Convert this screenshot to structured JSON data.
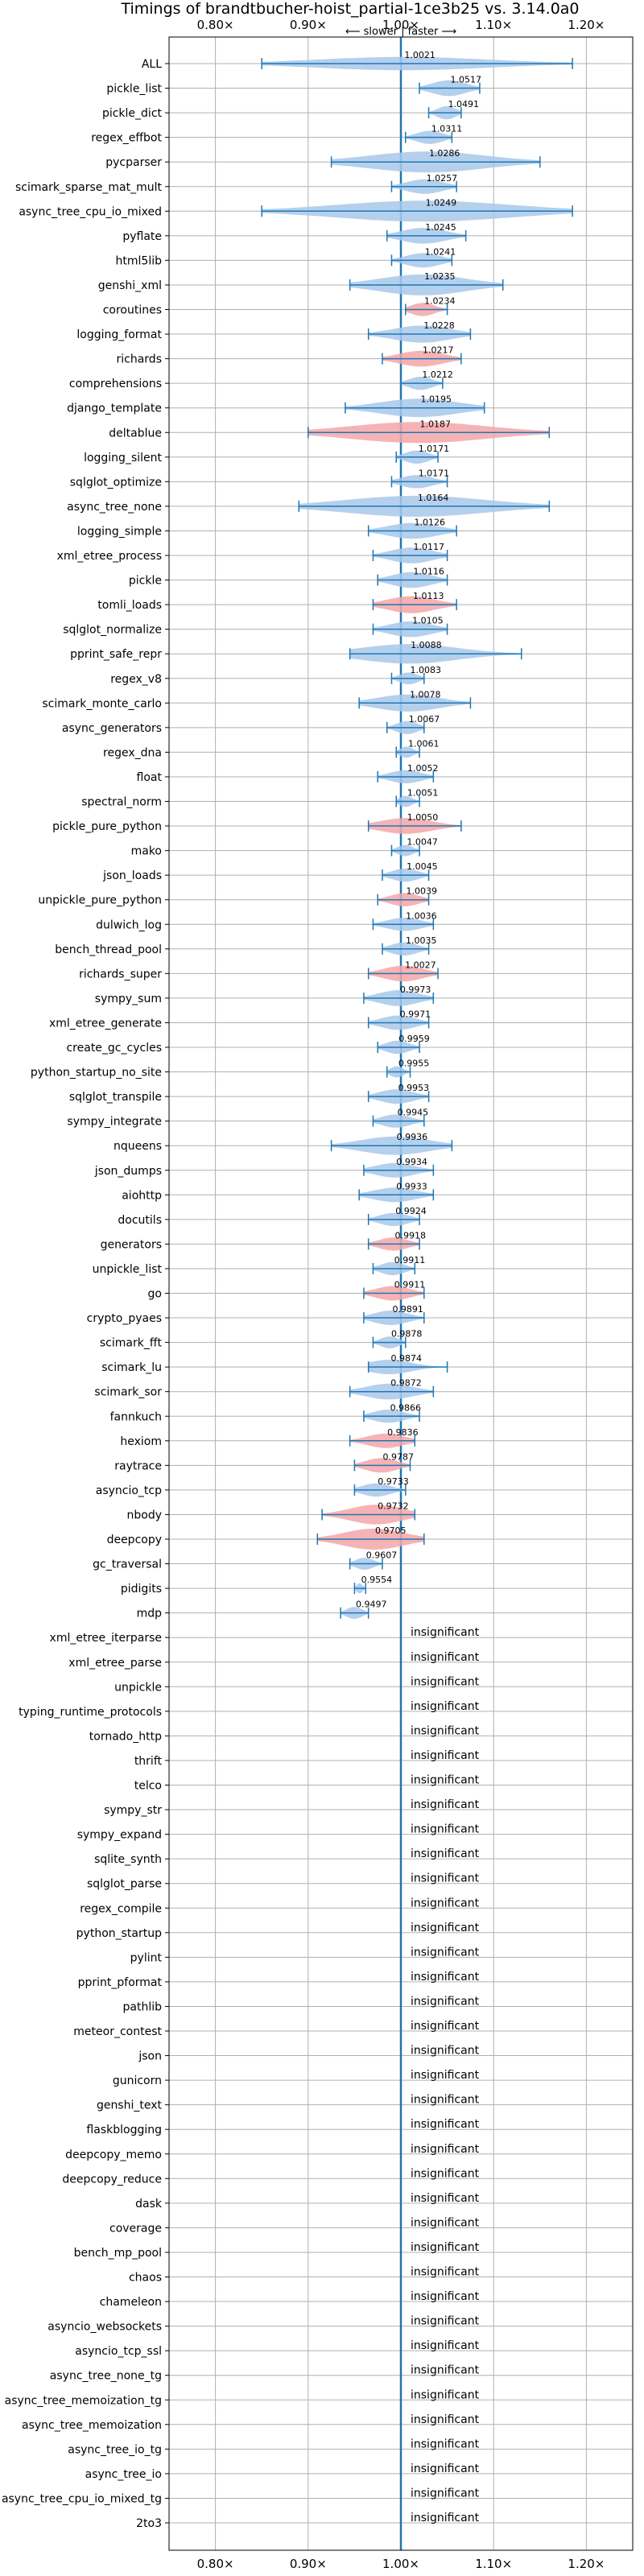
{
  "chart_data": {
    "type": "violin",
    "title": "Timings of brandtbucher-hoist_partial-1ce3b25 vs. 3.14.0a0",
    "direction_label": "⟵ slower | faster ⟶",
    "xlim": [
      0.75,
      1.25
    ],
    "xticks": [
      0.8,
      0.9,
      1.0,
      1.1,
      1.2
    ],
    "xtick_labels": [
      "0.80×",
      "0.90×",
      "1.00×",
      "1.10×",
      "1.20×"
    ],
    "grid": true,
    "reference_line": 1.0,
    "insignificant_text": "insignificant",
    "colors": {
      "faster": "#a8c8ea",
      "slower": "#f4a6a8",
      "line": "#1f77b4",
      "grid": "#b0b0b0"
    },
    "benchmarks": [
      {
        "name": "ALL",
        "value": 1.0021,
        "label": "1.0021",
        "lo": 0.85,
        "hi": 1.185,
        "spread": 0.02,
        "color": "faster",
        "significant": true
      },
      {
        "name": "pickle_list",
        "value": 1.0517,
        "label": "1.0517",
        "lo": 1.02,
        "hi": 1.085,
        "spread": 0.03,
        "color": "faster",
        "significant": true
      },
      {
        "name": "pickle_dict",
        "value": 1.0491,
        "label": "1.0491",
        "lo": 1.03,
        "hi": 1.065,
        "spread": 0.02,
        "color": "faster",
        "significant": true
      },
      {
        "name": "regex_effbot",
        "value": 1.0311,
        "label": "1.0311",
        "lo": 1.005,
        "hi": 1.055,
        "spread": 0.02,
        "color": "faster",
        "significant": true
      },
      {
        "name": "pycparser",
        "value": 1.0286,
        "label": "1.0286",
        "lo": 0.925,
        "hi": 1.15,
        "spread": 0.06,
        "color": "faster",
        "significant": true
      },
      {
        "name": "scimark_sparse_mat_mult",
        "value": 1.0257,
        "label": "1.0257",
        "lo": 0.99,
        "hi": 1.06,
        "spread": 0.025,
        "color": "faster",
        "significant": true
      },
      {
        "name": "async_tree_cpu_io_mixed",
        "value": 1.0249,
        "label": "1.0249",
        "lo": 0.85,
        "hi": 1.185,
        "spread": 0.07,
        "color": "faster",
        "significant": true
      },
      {
        "name": "pyflate",
        "value": 1.0245,
        "label": "1.0245",
        "lo": 0.985,
        "hi": 1.07,
        "spread": 0.03,
        "color": "faster",
        "significant": true
      },
      {
        "name": "html5lib",
        "value": 1.0241,
        "label": "1.0241",
        "lo": 0.99,
        "hi": 1.055,
        "spread": 0.025,
        "color": "faster",
        "significant": true
      },
      {
        "name": "genshi_xml",
        "value": 1.0235,
        "label": "1.0235",
        "lo": 0.945,
        "hi": 1.11,
        "spread": 0.05,
        "color": "faster",
        "significant": true
      },
      {
        "name": "coroutines",
        "value": 1.0234,
        "label": "1.0234",
        "lo": 1.005,
        "hi": 1.05,
        "spread": 0.02,
        "color": "slower",
        "significant": true
      },
      {
        "name": "logging_format",
        "value": 1.0228,
        "label": "1.0228",
        "lo": 0.965,
        "hi": 1.075,
        "spread": 0.035,
        "color": "faster",
        "significant": true
      },
      {
        "name": "richards",
        "value": 1.0217,
        "label": "1.0217",
        "lo": 0.98,
        "hi": 1.065,
        "spread": 0.03,
        "color": "slower",
        "significant": true
      },
      {
        "name": "comprehensions",
        "value": 1.0212,
        "label": "1.0212",
        "lo": 1.0,
        "hi": 1.045,
        "spread": 0.02,
        "color": "faster",
        "significant": true
      },
      {
        "name": "django_template",
        "value": 1.0195,
        "label": "1.0195",
        "lo": 0.94,
        "hi": 1.09,
        "spread": 0.04,
        "color": "faster",
        "significant": true
      },
      {
        "name": "deltablue",
        "value": 1.0187,
        "label": "1.0187",
        "lo": 0.9,
        "hi": 1.16,
        "spread": 0.08,
        "color": "slower",
        "significant": true
      },
      {
        "name": "logging_silent",
        "value": 1.0171,
        "label": "1.0171",
        "lo": 0.995,
        "hi": 1.04,
        "spread": 0.02,
        "color": "faster",
        "significant": true
      },
      {
        "name": "sqlglot_optimize",
        "value": 1.0171,
        "label": "1.0171",
        "lo": 0.99,
        "hi": 1.05,
        "spread": 0.02,
        "color": "faster",
        "significant": true
      },
      {
        "name": "async_tree_none",
        "value": 1.0164,
        "label": "1.0164",
        "lo": 0.89,
        "hi": 1.16,
        "spread": 0.07,
        "color": "faster",
        "significant": true
      },
      {
        "name": "logging_simple",
        "value": 1.0126,
        "label": "1.0126",
        "lo": 0.965,
        "hi": 1.06,
        "spread": 0.03,
        "color": "faster",
        "significant": true
      },
      {
        "name": "xml_etree_process",
        "value": 1.0117,
        "label": "1.0117",
        "lo": 0.97,
        "hi": 1.05,
        "spread": 0.03,
        "color": "faster",
        "significant": true
      },
      {
        "name": "pickle",
        "value": 1.0116,
        "label": "1.0116",
        "lo": 0.975,
        "hi": 1.05,
        "spread": 0.03,
        "color": "faster",
        "significant": true
      },
      {
        "name": "tomli_loads",
        "value": 1.0113,
        "label": "1.0113",
        "lo": 0.97,
        "hi": 1.06,
        "spread": 0.035,
        "color": "slower",
        "significant": true
      },
      {
        "name": "sqlglot_normalize",
        "value": 1.0105,
        "label": "1.0105",
        "lo": 0.97,
        "hi": 1.05,
        "spread": 0.03,
        "color": "faster",
        "significant": true
      },
      {
        "name": "pprint_safe_repr",
        "value": 1.0088,
        "label": "1.0088",
        "lo": 0.945,
        "hi": 1.13,
        "spread": 0.045,
        "color": "faster",
        "significant": true
      },
      {
        "name": "regex_v8",
        "value": 1.0083,
        "label": "1.0083",
        "lo": 0.99,
        "hi": 1.025,
        "spread": 0.015,
        "color": "faster",
        "significant": true
      },
      {
        "name": "scimark_monte_carlo",
        "value": 1.0078,
        "label": "1.0078",
        "lo": 0.955,
        "hi": 1.075,
        "spread": 0.035,
        "color": "faster",
        "significant": true
      },
      {
        "name": "async_generators",
        "value": 1.0067,
        "label": "1.0067",
        "lo": 0.985,
        "hi": 1.025,
        "spread": 0.02,
        "color": "faster",
        "significant": true
      },
      {
        "name": "regex_dna",
        "value": 1.0061,
        "label": "1.0061",
        "lo": 0.995,
        "hi": 1.02,
        "spread": 0.012,
        "color": "faster",
        "significant": true
      },
      {
        "name": "float",
        "value": 1.0052,
        "label": "1.0052",
        "lo": 0.975,
        "hi": 1.035,
        "spread": 0.02,
        "color": "faster",
        "significant": true
      },
      {
        "name": "spectral_norm",
        "value": 1.0051,
        "label": "1.0051",
        "lo": 0.995,
        "hi": 1.02,
        "spread": 0.012,
        "color": "faster",
        "significant": true
      },
      {
        "name": "pickle_pure_python",
        "value": 1.005,
        "label": "1.0050",
        "lo": 0.965,
        "hi": 1.065,
        "spread": 0.03,
        "color": "slower",
        "significant": true
      },
      {
        "name": "mako",
        "value": 1.0047,
        "label": "1.0047",
        "lo": 0.99,
        "hi": 1.02,
        "spread": 0.012,
        "color": "faster",
        "significant": true
      },
      {
        "name": "json_loads",
        "value": 1.0045,
        "label": "1.0045",
        "lo": 0.98,
        "hi": 1.03,
        "spread": 0.02,
        "color": "faster",
        "significant": true
      },
      {
        "name": "unpickle_pure_python",
        "value": 1.0039,
        "label": "1.0039",
        "lo": 0.975,
        "hi": 1.03,
        "spread": 0.02,
        "color": "slower",
        "significant": true
      },
      {
        "name": "dulwich_log",
        "value": 1.0036,
        "label": "1.0036",
        "lo": 0.97,
        "hi": 1.035,
        "spread": 0.02,
        "color": "faster",
        "significant": true
      },
      {
        "name": "bench_thread_pool",
        "value": 1.0035,
        "label": "1.0035",
        "lo": 0.98,
        "hi": 1.03,
        "spread": 0.02,
        "color": "faster",
        "significant": true
      },
      {
        "name": "richards_super",
        "value": 1.0027,
        "label": "1.0027",
        "lo": 0.965,
        "hi": 1.04,
        "spread": 0.03,
        "color": "slower",
        "significant": true
      },
      {
        "name": "sympy_sum",
        "value": 0.9973,
        "label": "0.9973",
        "lo": 0.96,
        "hi": 1.035,
        "spread": 0.03,
        "color": "faster",
        "significant": true
      },
      {
        "name": "xml_etree_generate",
        "value": 0.9971,
        "label": "0.9971",
        "lo": 0.965,
        "hi": 1.03,
        "spread": 0.025,
        "color": "faster",
        "significant": true
      },
      {
        "name": "create_gc_cycles",
        "value": 0.9959,
        "label": "0.9959",
        "lo": 0.975,
        "hi": 1.02,
        "spread": 0.02,
        "color": "faster",
        "significant": true
      },
      {
        "name": "python_startup_no_site",
        "value": 0.9955,
        "label": "0.9955",
        "lo": 0.985,
        "hi": 1.01,
        "spread": 0.012,
        "color": "faster",
        "significant": true
      },
      {
        "name": "sqlglot_transpile",
        "value": 0.9953,
        "label": "0.9953",
        "lo": 0.965,
        "hi": 1.03,
        "spread": 0.025,
        "color": "faster",
        "significant": true
      },
      {
        "name": "sympy_integrate",
        "value": 0.9945,
        "label": "0.9945",
        "lo": 0.97,
        "hi": 1.025,
        "spread": 0.02,
        "color": "faster",
        "significant": true
      },
      {
        "name": "nqueens",
        "value": 0.9936,
        "label": "0.9936",
        "lo": 0.925,
        "hi": 1.055,
        "spread": 0.04,
        "color": "faster",
        "significant": true
      },
      {
        "name": "json_dumps",
        "value": 0.9934,
        "label": "0.9934",
        "lo": 0.96,
        "hi": 1.035,
        "spread": 0.025,
        "color": "faster",
        "significant": true
      },
      {
        "name": "aiohttp",
        "value": 0.9933,
        "label": "0.9933",
        "lo": 0.955,
        "hi": 1.035,
        "spread": 0.025,
        "color": "faster",
        "significant": true
      },
      {
        "name": "docutils",
        "value": 0.9924,
        "label": "0.9924",
        "lo": 0.965,
        "hi": 1.02,
        "spread": 0.02,
        "color": "faster",
        "significant": true
      },
      {
        "name": "generators",
        "value": 0.9918,
        "label": "0.9918",
        "lo": 0.965,
        "hi": 1.02,
        "spread": 0.02,
        "color": "slower",
        "significant": true
      },
      {
        "name": "unpickle_list",
        "value": 0.9911,
        "label": "0.9911",
        "lo": 0.97,
        "hi": 1.015,
        "spread": 0.02,
        "color": "faster",
        "significant": true
      },
      {
        "name": "go",
        "value": 0.9911,
        "label": "0.9911",
        "lo": 0.96,
        "hi": 1.025,
        "spread": 0.025,
        "color": "slower",
        "significant": true
      },
      {
        "name": "crypto_pyaes",
        "value": 0.9891,
        "label": "0.9891",
        "lo": 0.96,
        "hi": 1.025,
        "spread": 0.025,
        "color": "faster",
        "significant": true
      },
      {
        "name": "scimark_fft",
        "value": 0.9878,
        "label": "0.9878",
        "lo": 0.97,
        "hi": 1.005,
        "spread": 0.015,
        "color": "faster",
        "significant": true
      },
      {
        "name": "scimark_lu",
        "value": 0.9874,
        "label": "0.9874",
        "lo": 0.965,
        "hi": 1.05,
        "spread": 0.025,
        "color": "faster",
        "significant": true
      },
      {
        "name": "scimark_sor",
        "value": 0.9872,
        "label": "0.9872",
        "lo": 0.945,
        "hi": 1.035,
        "spread": 0.03,
        "color": "faster",
        "significant": true
      },
      {
        "name": "fannkuch",
        "value": 0.9866,
        "label": "0.9866",
        "lo": 0.96,
        "hi": 1.02,
        "spread": 0.02,
        "color": "faster",
        "significant": true
      },
      {
        "name": "hexiom",
        "value": 0.9836,
        "label": "0.9836",
        "lo": 0.945,
        "hi": 1.015,
        "spread": 0.025,
        "color": "slower",
        "significant": true
      },
      {
        "name": "raytrace",
        "value": 0.9787,
        "label": "0.9787",
        "lo": 0.95,
        "hi": 1.01,
        "spread": 0.025,
        "color": "slower",
        "significant": true
      },
      {
        "name": "asyncio_tcp",
        "value": 0.9733,
        "label": "0.9733",
        "lo": 0.95,
        "hi": 1.005,
        "spread": 0.02,
        "color": "faster",
        "significant": true
      },
      {
        "name": "nbody",
        "value": 0.9732,
        "label": "0.9732",
        "lo": 0.915,
        "hi": 1.015,
        "spread": 0.045,
        "color": "slower",
        "significant": true
      },
      {
        "name": "deepcopy",
        "value": 0.9705,
        "label": "0.9705",
        "lo": 0.91,
        "hi": 1.025,
        "spread": 0.05,
        "color": "slower",
        "significant": true
      },
      {
        "name": "gc_traversal",
        "value": 0.9607,
        "label": "0.9607",
        "lo": 0.945,
        "hi": 0.98,
        "spread": 0.015,
        "color": "faster",
        "significant": true
      },
      {
        "name": "pidigits",
        "value": 0.9554,
        "label": "0.9554",
        "lo": 0.95,
        "hi": 0.962,
        "spread": 0.008,
        "color": "faster",
        "significant": true
      },
      {
        "name": "mdp",
        "value": 0.9497,
        "label": "0.9497",
        "lo": 0.935,
        "hi": 0.965,
        "spread": 0.015,
        "color": "faster",
        "significant": true
      },
      {
        "name": "xml_etree_iterparse",
        "significant": false
      },
      {
        "name": "xml_etree_parse",
        "significant": false
      },
      {
        "name": "unpickle",
        "significant": false
      },
      {
        "name": "typing_runtime_protocols",
        "significant": false
      },
      {
        "name": "tornado_http",
        "significant": false
      },
      {
        "name": "thrift",
        "significant": false
      },
      {
        "name": "telco",
        "significant": false
      },
      {
        "name": "sympy_str",
        "significant": false
      },
      {
        "name": "sympy_expand",
        "significant": false
      },
      {
        "name": "sqlite_synth",
        "significant": false
      },
      {
        "name": "sqlglot_parse",
        "significant": false
      },
      {
        "name": "regex_compile",
        "significant": false
      },
      {
        "name": "python_startup",
        "significant": false
      },
      {
        "name": "pylint",
        "significant": false
      },
      {
        "name": "pprint_pformat",
        "significant": false
      },
      {
        "name": "pathlib",
        "significant": false
      },
      {
        "name": "meteor_contest",
        "significant": false
      },
      {
        "name": "json",
        "significant": false
      },
      {
        "name": "gunicorn",
        "significant": false
      },
      {
        "name": "genshi_text",
        "significant": false
      },
      {
        "name": "flaskblogging",
        "significant": false
      },
      {
        "name": "deepcopy_memo",
        "significant": false
      },
      {
        "name": "deepcopy_reduce",
        "significant": false
      },
      {
        "name": "dask",
        "significant": false
      },
      {
        "name": "coverage",
        "significant": false
      },
      {
        "name": "bench_mp_pool",
        "significant": false
      },
      {
        "name": "chaos",
        "significant": false
      },
      {
        "name": "chameleon",
        "significant": false
      },
      {
        "name": "asyncio_websockets",
        "significant": false
      },
      {
        "name": "asyncio_tcp_ssl",
        "significant": false
      },
      {
        "name": "async_tree_none_tg",
        "significant": false
      },
      {
        "name": "async_tree_memoization_tg",
        "significant": false
      },
      {
        "name": "async_tree_memoization",
        "significant": false
      },
      {
        "name": "async_tree_io_tg",
        "significant": false
      },
      {
        "name": "async_tree_io",
        "significant": false
      },
      {
        "name": "async_tree_cpu_io_mixed_tg",
        "significant": false
      },
      {
        "name": "2to3",
        "significant": false
      }
    ]
  }
}
